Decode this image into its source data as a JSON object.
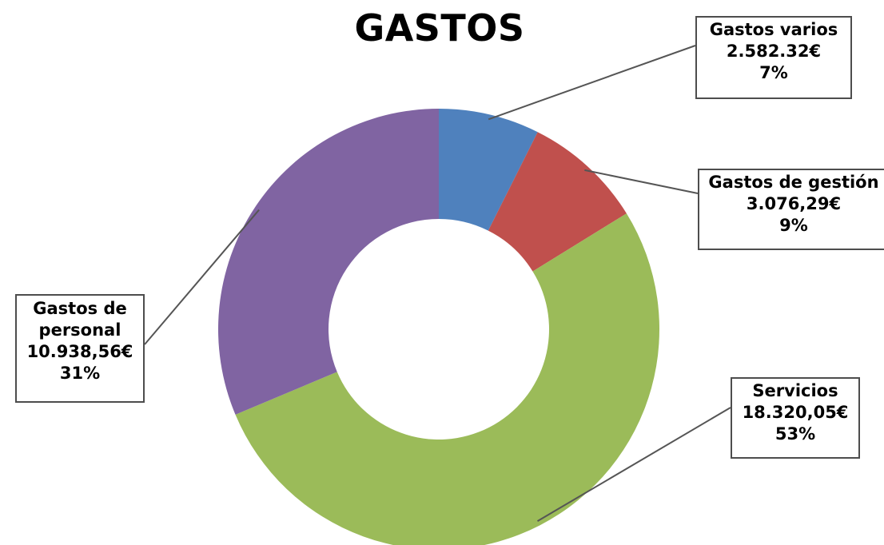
{
  "chart_data": {
    "type": "pie",
    "variant": "doughnut",
    "title": "GASTOS",
    "slices": [
      {
        "name": "Gastos varios",
        "value": 2582.32,
        "value_label": "2.582.32€",
        "percent_label": "7%",
        "color": "#4F81BD"
      },
      {
        "name": "Gastos de gestión",
        "value": 3076.29,
        "value_label": "3.076,29€",
        "percent_label": "9%",
        "color": "#C0504D"
      },
      {
        "name": "Servicios",
        "value": 18320.05,
        "value_label": "18.320,05€",
        "percent_label": "53%",
        "color": "#9BBB59"
      },
      {
        "name": "Gastos de personal",
        "value": 10938.56,
        "value_label": "10.938,56€",
        "percent_label": "31%",
        "color": "#8064A2"
      }
    ],
    "legend": "none",
    "start_angle": "12 o'clock",
    "direction": "clockwise"
  }
}
